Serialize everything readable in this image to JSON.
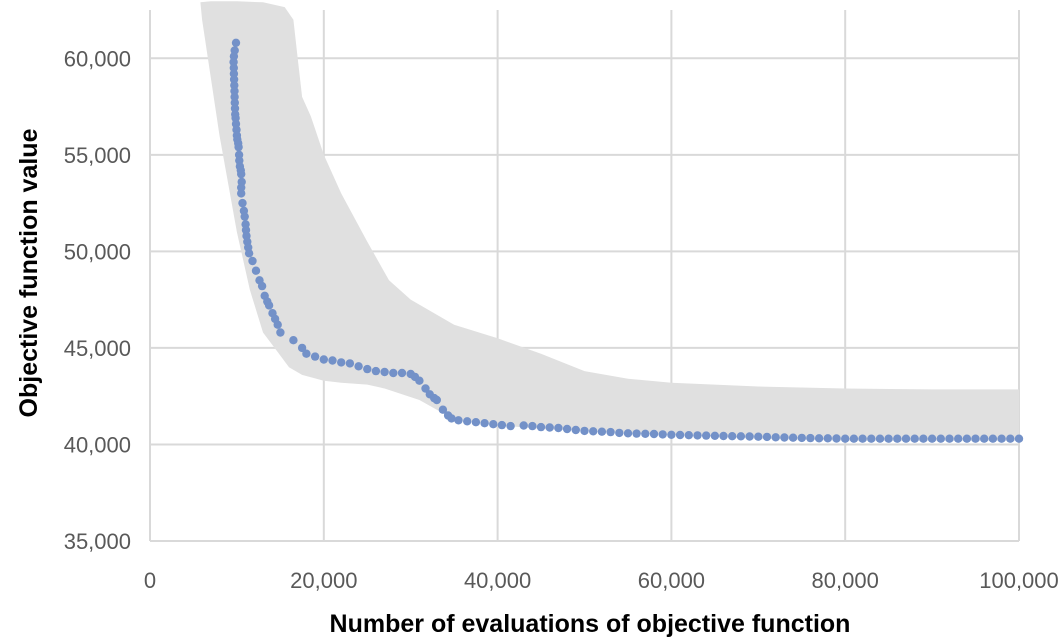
{
  "chart_data": {
    "type": "scatter",
    "title": "",
    "xlabel": "Number of evaluations of objective function",
    "ylabel": "Objective function value",
    "xlim": [
      0,
      100000
    ],
    "ylim": [
      35000,
      62500
    ],
    "x_ticks": [
      0,
      20000,
      40000,
      60000,
      80000,
      100000
    ],
    "x_tick_labels": [
      "0",
      "20,000",
      "40,000",
      "60,000",
      "80,000",
      "100,000"
    ],
    "y_ticks": [
      35000,
      40000,
      45000,
      50000,
      55000,
      60000
    ],
    "y_tick_labels": [
      "35,000",
      "40,000",
      "45,000",
      "50,000",
      "55,000",
      "60,000"
    ],
    "grid": true,
    "legend": "none",
    "band": {
      "upper": [
        [
          5800,
          62900
        ],
        [
          7000,
          62950
        ],
        [
          10000,
          62950
        ],
        [
          13000,
          62900
        ],
        [
          15500,
          62650
        ],
        [
          16500,
          62000
        ],
        [
          17000,
          60000
        ],
        [
          17500,
          58000
        ],
        [
          18500,
          57000
        ],
        [
          20000,
          55000
        ],
        [
          22000,
          53000
        ],
        [
          25000,
          50500
        ],
        [
          27500,
          48500
        ],
        [
          30000,
          47500
        ],
        [
          35000,
          46200
        ],
        [
          40000,
          45500
        ],
        [
          45000,
          44700
        ],
        [
          50000,
          43800
        ],
        [
          55000,
          43400
        ],
        [
          60000,
          43200
        ],
        [
          70000,
          43000
        ],
        [
          80000,
          42900
        ],
        [
          90000,
          42850
        ],
        [
          100000,
          42850
        ]
      ],
      "lower": [
        [
          100000,
          40200
        ],
        [
          90000,
          40200
        ],
        [
          80000,
          40200
        ],
        [
          70000,
          40300
        ],
        [
          60000,
          40500
        ],
        [
          55000,
          40600
        ],
        [
          50000,
          40700
        ],
        [
          45000,
          40800
        ],
        [
          40000,
          41000
        ],
        [
          35000,
          41300
        ],
        [
          33000,
          41800
        ],
        [
          31000,
          42300
        ],
        [
          29000,
          42600
        ],
        [
          27000,
          42900
        ],
        [
          25000,
          43100
        ],
        [
          22000,
          43200
        ],
        [
          20000,
          43300
        ],
        [
          17500,
          43600
        ],
        [
          16000,
          44000
        ],
        [
          14500,
          44900
        ],
        [
          13000,
          45800
        ],
        [
          11500,
          48000
        ],
        [
          10000,
          51000
        ],
        [
          9000,
          53500
        ],
        [
          8000,
          56000
        ],
        [
          7000,
          59000
        ],
        [
          6000,
          62000
        ],
        [
          5800,
          62900
        ]
      ],
      "color": "#e0e0e0"
    },
    "series": [
      {
        "color": "#7391c8",
        "points": [
          [
            9900,
            60800
          ],
          [
            9750,
            60400
          ],
          [
            9650,
            60100
          ],
          [
            9620,
            59800
          ],
          [
            9640,
            59500
          ],
          [
            9660,
            59200
          ],
          [
            9680,
            58900
          ],
          [
            9700,
            58600
          ],
          [
            9720,
            58300
          ],
          [
            9740,
            58000
          ],
          [
            9760,
            57700
          ],
          [
            9780,
            57400
          ],
          [
            9800,
            57100
          ],
          [
            9850,
            56900
          ],
          [
            9900,
            56600
          ],
          [
            9950,
            56300
          ],
          [
            10000,
            56000
          ],
          [
            10050,
            55800
          ],
          [
            10150,
            55600
          ],
          [
            10200,
            55400
          ],
          [
            10250,
            55000
          ],
          [
            10280,
            54700
          ],
          [
            10350,
            54400
          ],
          [
            10450,
            54200
          ],
          [
            10500,
            54000
          ],
          [
            10550,
            53600
          ],
          [
            10500,
            53300
          ],
          [
            10500,
            53000
          ],
          [
            10650,
            52500
          ],
          [
            10800,
            52100
          ],
          [
            10900,
            51800
          ],
          [
            11000,
            51400
          ],
          [
            11050,
            51100
          ],
          [
            11100,
            50800
          ],
          [
            11200,
            50500
          ],
          [
            11300,
            50200
          ],
          [
            11400,
            49900
          ],
          [
            11800,
            49500
          ],
          [
            12200,
            49000
          ],
          [
            12600,
            48500
          ],
          [
            12900,
            48200
          ],
          [
            13200,
            47700
          ],
          [
            13500,
            47400
          ],
          [
            13700,
            47200
          ],
          [
            14100,
            46800
          ],
          [
            14400,
            46500
          ],
          [
            14700,
            46200
          ],
          [
            15000,
            45800
          ],
          [
            16500,
            45400
          ],
          [
            17500,
            45000
          ],
          [
            18000,
            44700
          ],
          [
            19000,
            44550
          ],
          [
            20000,
            44400
          ],
          [
            21000,
            44350
          ],
          [
            22000,
            44250
          ],
          [
            23000,
            44200
          ],
          [
            24000,
            44050
          ],
          [
            25000,
            43900
          ],
          [
            26000,
            43800
          ],
          [
            27000,
            43750
          ],
          [
            28000,
            43700
          ],
          [
            29000,
            43700
          ],
          [
            30000,
            43650
          ],
          [
            30500,
            43500
          ],
          [
            31000,
            43300
          ],
          [
            31700,
            42900
          ],
          [
            32200,
            42600
          ],
          [
            32700,
            42400
          ],
          [
            33000,
            42300
          ],
          [
            33700,
            41800
          ],
          [
            34300,
            41500
          ],
          [
            34700,
            41350
          ],
          [
            35500,
            41250
          ],
          [
            36500,
            41200
          ],
          [
            37500,
            41150
          ],
          [
            38500,
            41100
          ],
          [
            39500,
            41050
          ],
          [
            40500,
            41000
          ],
          [
            41500,
            40950
          ],
          [
            43000,
            40980
          ],
          [
            44000,
            40950
          ],
          [
            45000,
            40900
          ],
          [
            46000,
            40880
          ],
          [
            47000,
            40850
          ],
          [
            48000,
            40800
          ],
          [
            49000,
            40750
          ],
          [
            50000,
            40700
          ],
          [
            51000,
            40680
          ],
          [
            52000,
            40660
          ],
          [
            53000,
            40640
          ],
          [
            54000,
            40600
          ],
          [
            55000,
            40580
          ],
          [
            56000,
            40560
          ],
          [
            57000,
            40550
          ],
          [
            58000,
            40540
          ],
          [
            59000,
            40520
          ],
          [
            60000,
            40500
          ],
          [
            61000,
            40490
          ],
          [
            62000,
            40480
          ],
          [
            63000,
            40470
          ],
          [
            64000,
            40460
          ],
          [
            65000,
            40450
          ],
          [
            66000,
            40440
          ],
          [
            67000,
            40430
          ],
          [
            68000,
            40420
          ],
          [
            69000,
            40410
          ],
          [
            70000,
            40400
          ],
          [
            71000,
            40390
          ],
          [
            72000,
            40370
          ],
          [
            73000,
            40360
          ],
          [
            74000,
            40350
          ],
          [
            75000,
            40340
          ],
          [
            76000,
            40330
          ],
          [
            77000,
            40320
          ],
          [
            78000,
            40320
          ],
          [
            79000,
            40310
          ],
          [
            80000,
            40300
          ],
          [
            81000,
            40300
          ],
          [
            82000,
            40300
          ],
          [
            83000,
            40300
          ],
          [
            84000,
            40300
          ],
          [
            85000,
            40300
          ],
          [
            86000,
            40300
          ],
          [
            87000,
            40300
          ],
          [
            88000,
            40300
          ],
          [
            89000,
            40300
          ],
          [
            90000,
            40300
          ],
          [
            91000,
            40300
          ],
          [
            92000,
            40300
          ],
          [
            93000,
            40300
          ],
          [
            94000,
            40300
          ],
          [
            95000,
            40300
          ],
          [
            96000,
            40300
          ],
          [
            97000,
            40300
          ],
          [
            98000,
            40300
          ],
          [
            99000,
            40300
          ],
          [
            100000,
            40300
          ]
        ]
      }
    ]
  }
}
